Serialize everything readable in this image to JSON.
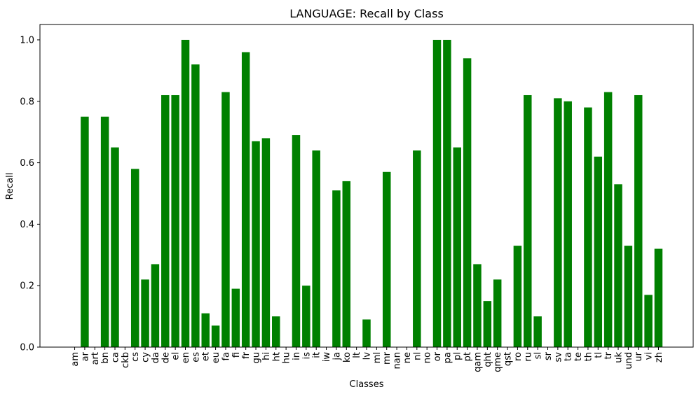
{
  "chart_data": {
    "type": "bar",
    "title": "LANGUAGE: Recall by Class",
    "xlabel": "Classes",
    "ylabel": "Recall",
    "ylim": [
      0,
      1.05
    ],
    "yticks": [
      0.0,
      0.2,
      0.4,
      0.6,
      0.8,
      1.0
    ],
    "ytick_labels": [
      "0.0",
      "0.2",
      "0.4",
      "0.6",
      "0.8",
      "1.0"
    ],
    "grid": false,
    "bar_color": "#008000",
    "categories": [
      "am",
      "ar",
      "art",
      "bn",
      "ca",
      "ckb",
      "cs",
      "cy",
      "da",
      "de",
      "el",
      "en",
      "es",
      "et",
      "eu",
      "fa",
      "fi",
      "fr",
      "gu",
      "hi",
      "ht",
      "hu",
      "in",
      "is",
      "it",
      "iw",
      "ja",
      "ko",
      "lt",
      "lv",
      "ml",
      "mr",
      "nan",
      "ne",
      "nl",
      "no",
      "or",
      "pa",
      "pl",
      "pt",
      "qam",
      "qht",
      "qme",
      "qst",
      "ro",
      "ru",
      "sl",
      "sr",
      "sv",
      "ta",
      "te",
      "th",
      "tl",
      "tr",
      "uk",
      "und",
      "ur",
      "vi",
      "zh"
    ],
    "values": [
      0.0,
      0.75,
      0.0,
      0.75,
      0.65,
      0.0,
      0.58,
      0.22,
      0.27,
      0.82,
      0.82,
      1.0,
      0.92,
      0.11,
      0.07,
      0.83,
      0.19,
      0.96,
      0.67,
      0.68,
      0.1,
      0.0,
      0.69,
      0.2,
      0.64,
      0.0,
      0.51,
      0.54,
      0.0,
      0.09,
      0.0,
      0.57,
      0.0,
      0.0,
      0.64,
      0.0,
      1.0,
      1.0,
      0.65,
      0.94,
      0.27,
      0.15,
      0.22,
      0.0,
      0.33,
      0.82,
      0.1,
      0.0,
      0.81,
      0.8,
      0.0,
      0.78,
      0.62,
      0.83,
      0.53,
      0.33,
      0.82,
      0.17,
      0.32
    ]
  }
}
